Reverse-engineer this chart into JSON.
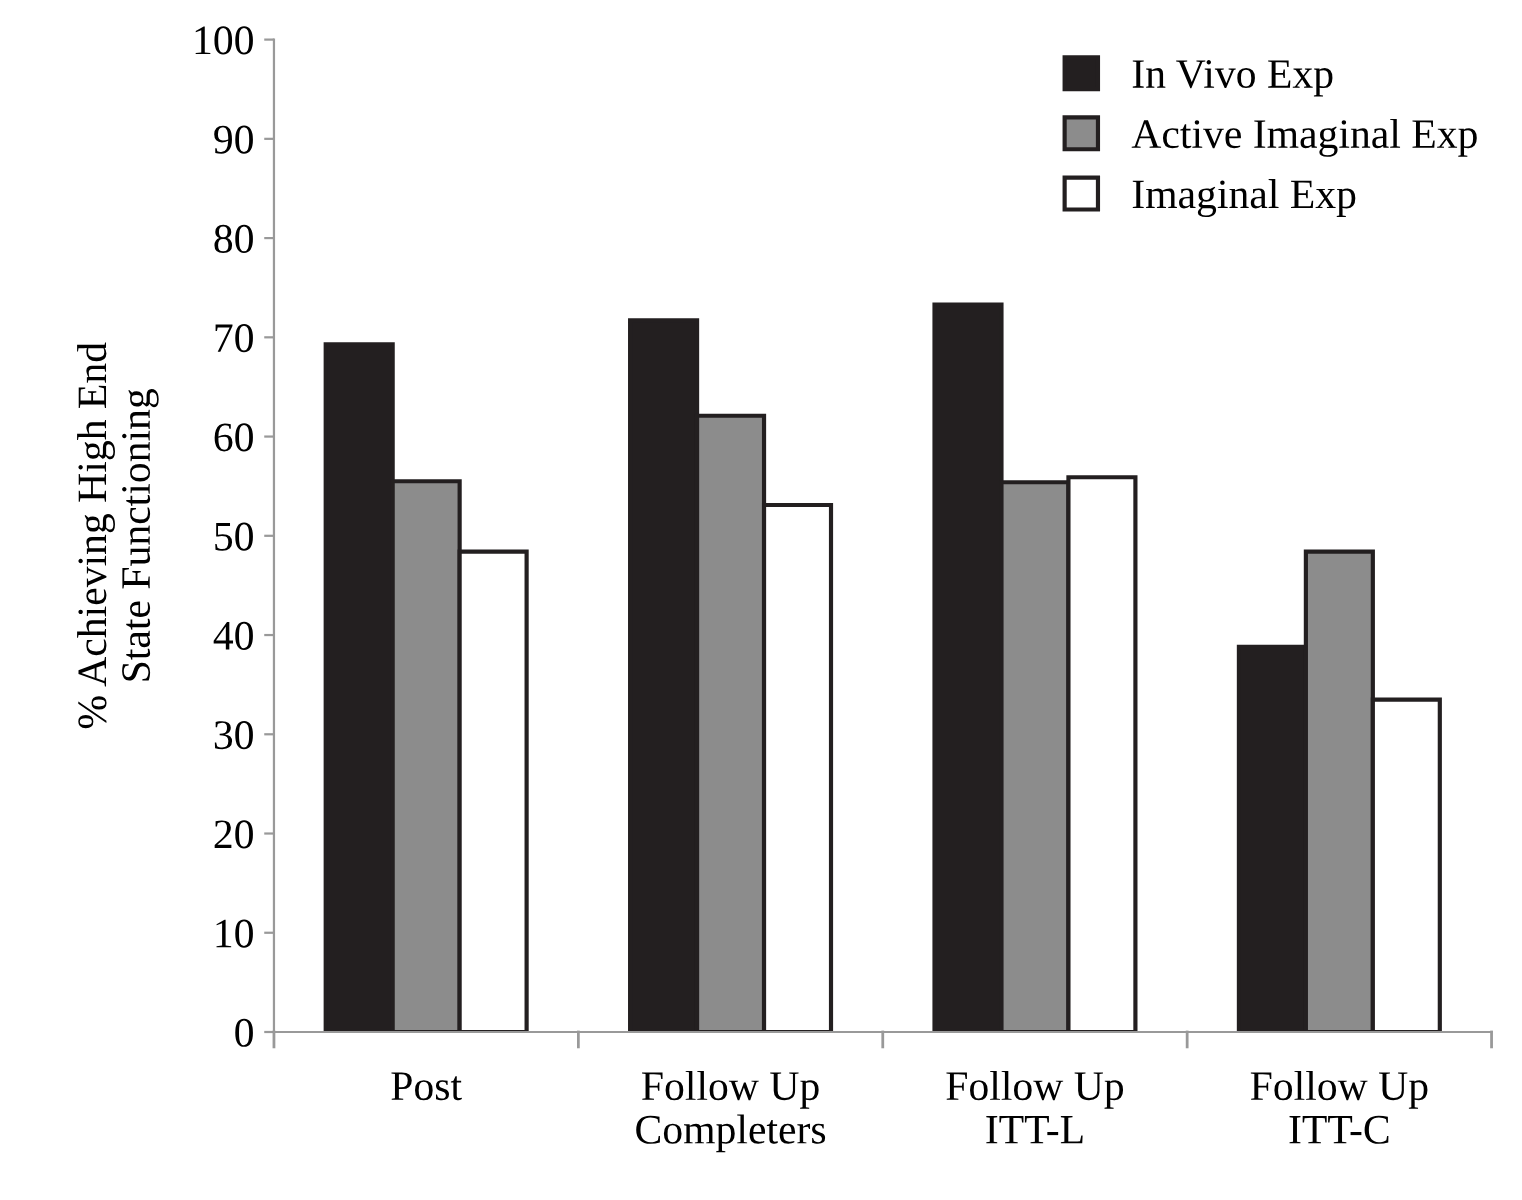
{
  "chart_data": {
    "type": "bar",
    "ylabel": "% Achieving High End\nState Functioning",
    "categories": [
      "Post",
      "Follow Up\nCompleters",
      "Follow Up\nITT-L",
      "Follow Up\nITT-C"
    ],
    "series": [
      {
        "name": "In Vivo Exp",
        "color": "#231f20",
        "values": [
          69.3,
          71.7,
          73.3,
          38.8
        ]
      },
      {
        "name": "Active Imaginal Exp",
        "color": "#8c8c8c",
        "values": [
          55.5,
          62.1,
          55.4,
          48.4
        ]
      },
      {
        "name": "Imaginal Exp",
        "color": "#ffffff",
        "values": [
          48.4,
          53.1,
          55.9,
          33.5
        ]
      }
    ],
    "ylim": [
      0,
      100
    ],
    "yticks": [
      0,
      10,
      20,
      30,
      40,
      50,
      60,
      70,
      80,
      90,
      100
    ],
    "grid": false,
    "legend": "top right"
  }
}
